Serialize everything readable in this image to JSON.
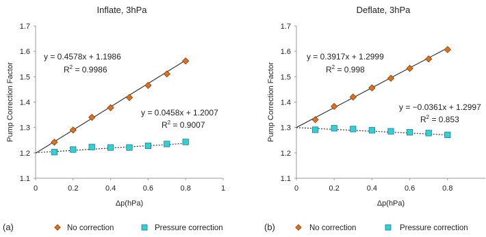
{
  "chart_data": [
    {
      "type": "scatter",
      "panel_label": "(a)",
      "title": "Inflate, 3hPa",
      "xlabel": "Δp(hPa)",
      "ylabel": "Pump Correction Factor",
      "xlim": [
        0,
        1
      ],
      "ylim": [
        1.1,
        1.7
      ],
      "x_ticks": [
        "0",
        "0.2",
        "0.4",
        "0.6",
        "0.8",
        "1"
      ],
      "y_ticks": [
        "1.1",
        "1.2",
        "1.3",
        "1.4",
        "1.5",
        "1.6",
        "1.7"
      ],
      "grid": false,
      "legend_position": "bottom",
      "series": [
        {
          "name": "No correction",
          "marker": "diamond",
          "color": "#e0711c",
          "x": [
            0.1,
            0.2,
            0.3,
            0.4,
            0.5,
            0.6,
            0.7,
            0.8
          ],
          "y": [
            1.242,
            1.29,
            1.34,
            1.378,
            1.418,
            1.466,
            1.511,
            1.562
          ],
          "trendline": {
            "slope": 0.4578,
            "intercept": 1.1986,
            "style": "solid",
            "color": "#333333",
            "x_range": [
              0,
              0.8
            ]
          },
          "equation": "y = 0.4578x + 1.1986",
          "r2_label": "R",
          "r2_value": " = 0.9986"
        },
        {
          "name": "Pressure correction",
          "marker": "square",
          "color": "#2fd0d8",
          "x": [
            0.1,
            0.2,
            0.3,
            0.4,
            0.5,
            0.6,
            0.7,
            0.8
          ],
          "y": [
            1.203,
            1.213,
            1.223,
            1.221,
            1.221,
            1.228,
            1.235,
            1.243
          ],
          "trendline": {
            "slope": 0.0458,
            "intercept": 1.2007,
            "style": "dotted",
            "color": "#333333",
            "x_range": [
              0,
              0.8
            ]
          },
          "equation": "y = 0.0458x + 1.2007",
          "r2_label": "R",
          "r2_value": " = 0.9007"
        }
      ]
    },
    {
      "type": "scatter",
      "panel_label": "(b)",
      "title": "Deflate, 3hPa",
      "xlabel": "Δp(hPa)",
      "ylabel": "Pump Correction Factor",
      "xlim": [
        0,
        1
      ],
      "ylim": [
        1.1,
        1.7
      ],
      "x_ticks": [
        "0",
        "0.2",
        "0.4",
        "0.6",
        "0.8"
      ],
      "y_ticks": [
        "1.1",
        "1.2",
        "1.3",
        "1.4",
        "1.5",
        "1.6",
        "1.7"
      ],
      "grid": false,
      "legend_position": "bottom",
      "series": [
        {
          "name": "No correction",
          "marker": "diamond",
          "color": "#e0711c",
          "x": [
            0.1,
            0.2,
            0.3,
            0.4,
            0.5,
            0.6,
            0.7,
            0.8
          ],
          "y": [
            1.331,
            1.383,
            1.42,
            1.456,
            1.494,
            1.533,
            1.57,
            1.607
          ],
          "trendline": {
            "slope": 0.3917,
            "intercept": 1.2999,
            "style": "solid",
            "color": "#333333",
            "x_range": [
              0,
              0.8
            ]
          },
          "equation": "y = 0.3917x + 1.2999",
          "r2_label": "R",
          "r2_value": " = 0.998"
        },
        {
          "name": "Pressure correction",
          "marker": "square",
          "color": "#2fd0d8",
          "x": [
            0.1,
            0.2,
            0.3,
            0.4,
            0.5,
            0.6,
            0.7,
            0.8
          ],
          "y": [
            1.291,
            1.297,
            1.294,
            1.289,
            1.285,
            1.281,
            1.278,
            1.271
          ],
          "trendline": {
            "slope": -0.0361,
            "intercept": 1.2997,
            "style": "dotted",
            "color": "#333333",
            "x_range": [
              0,
              0.8
            ]
          },
          "equation": "y = −0.0361x + 1.2997",
          "r2_label": "R",
          "r2_value": " = 0.853"
        }
      ]
    }
  ],
  "legend": [
    {
      "label": "No correction"
    },
    {
      "label": "Pressure correction"
    }
  ],
  "r2_superscript": "2"
}
